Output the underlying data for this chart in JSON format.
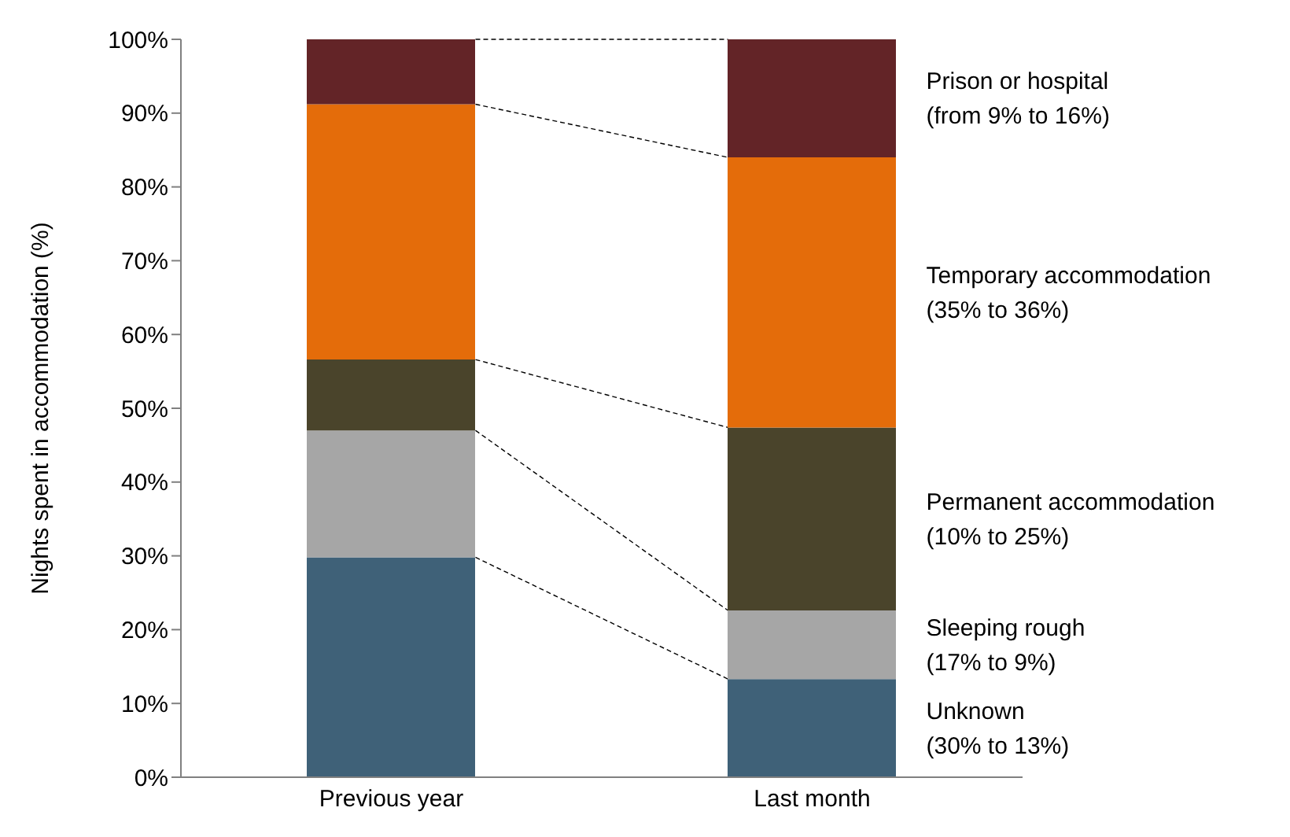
{
  "chart_data": {
    "type": "bar",
    "stacked": true,
    "ylabel": "Nights spent in accommodation (%)",
    "categories": [
      "Previous year",
      "Last month"
    ],
    "series": [
      {
        "color": "#3f6178",
        "values": [
          29.8,
          13.3
        ]
      },
      {
        "color": "#a6a6a6",
        "values": [
          17.2,
          9.3
        ]
      },
      {
        "color": "#4a442b",
        "values": [
          9.6,
          24.8
        ]
      },
      {
        "color": "#e46c0a",
        "values": [
          34.6,
          36.6
        ]
      },
      {
        "color": "#632427",
        "values": [
          8.8,
          16.0
        ]
      }
    ],
    "ylim": [
      0,
      100
    ],
    "yticks": [
      {
        "value": 0,
        "label": "0%"
      },
      {
        "value": 10,
        "label": "10%"
      },
      {
        "value": 20,
        "label": "20%"
      },
      {
        "value": 30,
        "label": "30%"
      },
      {
        "value": 40,
        "label": "40%"
      },
      {
        "value": 50,
        "label": "50%"
      },
      {
        "value": 60,
        "label": "60%"
      },
      {
        "value": 70,
        "label": "70%"
      },
      {
        "value": 80,
        "label": "80%"
      },
      {
        "value": 90,
        "label": "90%"
      },
      {
        "value": 100,
        "label": "100%"
      }
    ],
    "annotations": [
      "Prison or hospital\n(from 9% to 16%)",
      "Temporary accommodation\n(35% to 36%)",
      "Permanent accommodation\n(10% to 25%)",
      "Sleeping rough\n(17% to 9%)",
      "Unknown\n(30% to 13%)"
    ],
    "grid": false,
    "legend": false
  }
}
